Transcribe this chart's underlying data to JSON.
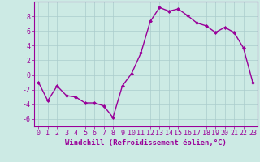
{
  "x": [
    0,
    1,
    2,
    3,
    4,
    5,
    6,
    7,
    8,
    9,
    10,
    11,
    12,
    13,
    14,
    15,
    16,
    17,
    18,
    19,
    20,
    21,
    22,
    23
  ],
  "y": [
    -1,
    -3.5,
    -1.5,
    -2.8,
    -3.0,
    -3.8,
    -3.8,
    -4.2,
    -5.8,
    -1.5,
    0.2,
    3.0,
    7.3,
    9.2,
    8.7,
    9.0,
    8.1,
    7.1,
    6.7,
    5.8,
    6.5,
    5.8,
    3.7,
    -1.0
  ],
  "line_color": "#990099",
  "marker": "D",
  "markersize": 2,
  "linewidth": 1.0,
  "bg_color": "#cceae4",
  "grid_color": "#aacccc",
  "xlabel": "Windchill (Refroidissement éolien,°C)",
  "ylabel": "",
  "ylim": [
    -7,
    10
  ],
  "xlim": [
    -0.5,
    23.5
  ],
  "yticks": [
    -6,
    -4,
    -2,
    0,
    2,
    4,
    6,
    8
  ],
  "xticks": [
    0,
    1,
    2,
    3,
    4,
    5,
    6,
    7,
    8,
    9,
    10,
    11,
    12,
    13,
    14,
    15,
    16,
    17,
    18,
    19,
    20,
    21,
    22,
    23
  ],
  "xlabel_fontsize": 6.5,
  "tick_fontsize": 6,
  "tick_color": "#990099",
  "axis_color": "#990099"
}
